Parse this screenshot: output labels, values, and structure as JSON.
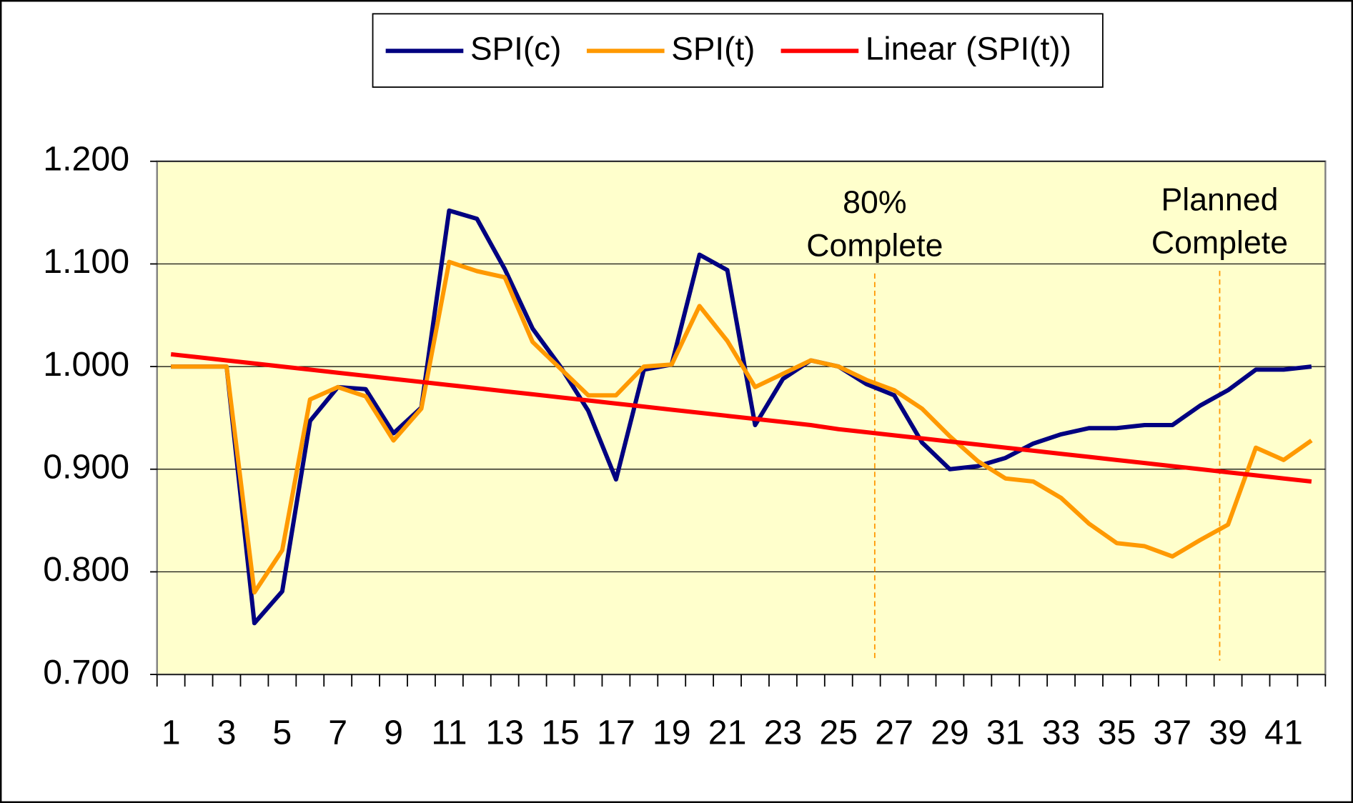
{
  "chart_data": {
    "type": "line",
    "categories": [
      1,
      null,
      3,
      null,
      5,
      null,
      7,
      null,
      9,
      null,
      11,
      null,
      13,
      null,
      15,
      null,
      17,
      null,
      19,
      null,
      21,
      null,
      23,
      null,
      25,
      null,
      27,
      null,
      29,
      null,
      31,
      null,
      33,
      null,
      35,
      null,
      37,
      null,
      39,
      null,
      41,
      null
    ],
    "series": [
      {
        "name": "SPI(c)",
        "color": "#000080",
        "values": [
          1.0,
          1.0,
          1.0,
          0.75,
          0.781,
          0.947,
          0.98,
          0.978,
          0.935,
          0.96,
          1.152,
          1.144,
          1.095,
          1.037,
          1.0,
          0.957,
          0.89,
          0.997,
          1.002,
          1.109,
          1.094,
          0.943,
          0.988,
          1.006,
          1.0,
          0.983,
          0.972,
          0.926,
          0.9,
          0.903,
          0.911,
          0.925,
          0.934,
          0.94,
          0.94,
          0.943,
          0.943,
          0.962,
          0.977,
          0.997,
          0.997,
          1.0
        ]
      },
      {
        "name": "SPI(t)",
        "color": "#FF9900",
        "values": [
          1.0,
          1.0,
          1.0,
          0.78,
          0.821,
          0.968,
          0.98,
          0.971,
          0.928,
          0.959,
          1.102,
          1.093,
          1.087,
          1.024,
          0.998,
          0.972,
          0.972,
          1.0,
          1.002,
          1.059,
          1.025,
          0.98,
          0.993,
          1.006,
          1.0,
          0.987,
          0.977,
          0.959,
          0.932,
          0.908,
          0.891,
          0.888,
          0.872,
          0.847,
          0.828,
          0.825,
          0.815,
          0.831,
          0.846,
          0.921,
          0.909,
          0.928
        ]
      },
      {
        "name": "Linear (SPI(t))",
        "color": "#FF0000",
        "values": [
          1.012,
          1.009,
          1.006,
          1.003,
          1.0,
          0.997,
          0.994,
          0.991,
          0.988,
          0.985,
          0.982,
          0.979,
          0.976,
          0.973,
          0.97,
          0.967,
          0.964,
          0.961,
          0.958,
          0.955,
          0.952,
          0.949,
          0.946,
          0.943,
          0.939,
          0.936,
          0.933,
          0.93,
          0.927,
          0.924,
          0.921,
          0.918,
          0.915,
          0.912,
          0.909,
          0.906,
          0.903,
          0.9,
          0.897,
          0.894,
          0.891,
          0.888
        ]
      }
    ],
    "ylim": [
      0.7,
      1.2
    ],
    "yticks": [
      {
        "value": 0.7,
        "label": "0.700"
      },
      {
        "value": 0.8,
        "label": "0.800"
      },
      {
        "value": 0.9,
        "label": "0.900"
      },
      {
        "value": 1.0,
        "label": "1.000"
      },
      {
        "value": 1.1,
        "label": "1.100"
      },
      {
        "value": 1.2,
        "label": "1.200"
      }
    ],
    "grid": true,
    "legend": "top",
    "annotations": [
      {
        "lines": [
          "80%",
          "Complete"
        ]
      },
      {
        "lines": [
          "Planned",
          "Complete"
        ]
      }
    ]
  }
}
